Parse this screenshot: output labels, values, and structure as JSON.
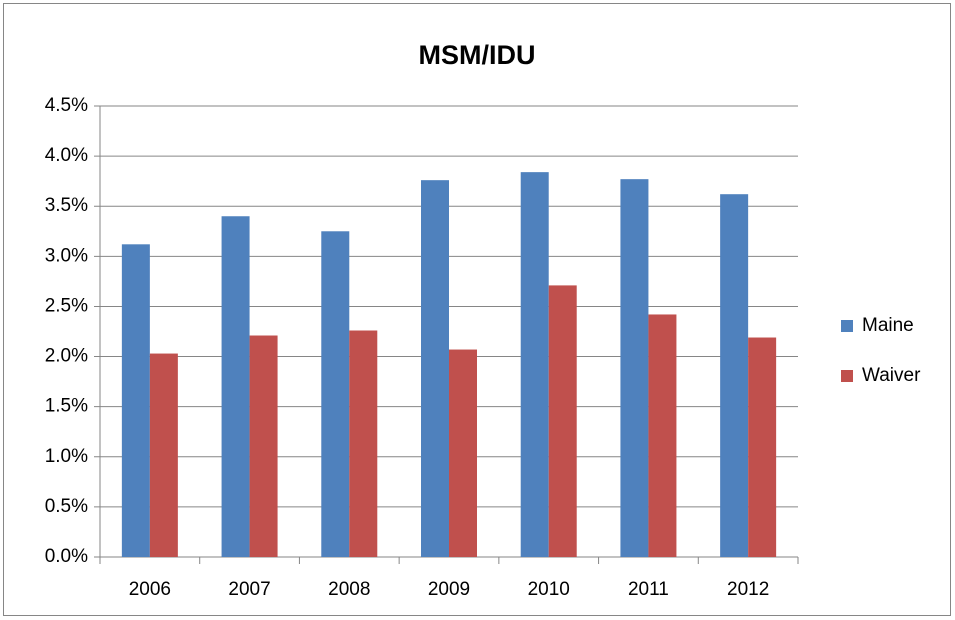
{
  "chart_data": {
    "type": "bar",
    "title": "MSM/IDU",
    "categories": [
      "2006",
      "2007",
      "2008",
      "2009",
      "2010",
      "2011",
      "2012"
    ],
    "series": [
      {
        "name": "Maine",
        "color": "#4f81bd",
        "values": [
          3.12,
          3.4,
          3.25,
          3.76,
          3.84,
          3.77,
          3.62
        ]
      },
      {
        "name": "Waiver",
        "color": "#c0504d",
        "values": [
          2.03,
          2.21,
          2.26,
          2.07,
          2.71,
          2.42,
          2.19
        ]
      }
    ],
    "ylim": [
      0,
      4.5
    ],
    "yticks": [
      {
        "value": 0,
        "label": "0.0%"
      },
      {
        "value": 0.5,
        "label": "0.5%"
      },
      {
        "value": 1,
        "label": "1.0%"
      },
      {
        "value": 1.5,
        "label": "1.5%"
      },
      {
        "value": 2,
        "label": "2.0%"
      },
      {
        "value": 2.5,
        "label": "2.5%"
      },
      {
        "value": 3,
        "label": "3.0%"
      },
      {
        "value": 3.5,
        "label": "3.5%"
      },
      {
        "value": 4,
        "label": "4.0%"
      },
      {
        "value": 4.5,
        "label": "4.5%"
      }
    ],
    "grid": true,
    "legend": "right"
  }
}
